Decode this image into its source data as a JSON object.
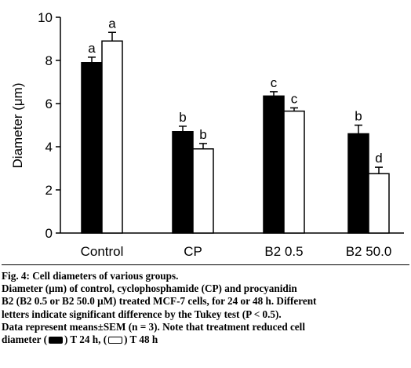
{
  "chart_data": {
    "type": "bar",
    "ylabel": "Diameter (μm)",
    "ylim": [
      0,
      10
    ],
    "yticks": [
      "0",
      "2",
      "4",
      "6",
      "8",
      "10"
    ],
    "categories": [
      "Control",
      "CP",
      "B2 0.5",
      "B2 50.0"
    ],
    "series": [
      {
        "name": "T 24 h",
        "color": "#000000",
        "values": [
          7.9,
          4.7,
          6.35,
          4.6
        ],
        "errors": [
          0.25,
          0.25,
          0.2,
          0.4
        ],
        "letters": [
          "a",
          "b",
          "c",
          "b"
        ]
      },
      {
        "name": "T 48 h",
        "color": "#ffffff",
        "values": [
          8.9,
          3.9,
          5.65,
          2.75
        ],
        "errors": [
          0.4,
          0.25,
          0.15,
          0.3
        ],
        "letters": [
          "a",
          "b",
          "c",
          "d"
        ]
      }
    ],
    "grid": false,
    "legend": "in caption"
  },
  "caption": {
    "title": "Fig. 4: Cell diameters of various groups.",
    "line1": "Diameter (μm) of control, cyclophosphamide (CP) and procyanidin",
    "line2": "B2 (B2 0.5 or B2 50.0 μM) treated MCF-7 cells, for 24 or 48 h. Different",
    "line3": "letters indicate significant difference by the Tukey test (P < 0.5).",
    "line4": "Data represent means±SEM (n = 3). Note that treatment reduced cell",
    "line5_prefix": "diameter (",
    "legend_24": ") T 24 h, (",
    "legend_48": ") T 48 h"
  }
}
